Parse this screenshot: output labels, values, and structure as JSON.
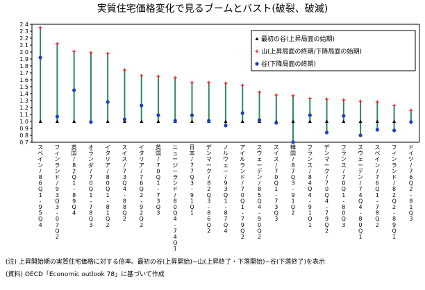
{
  "chart_data": {
    "type": "range",
    "title": "実質住宅価格変化で見るブームとバスト(破裂、破滅)",
    "ylim": [
      0.7,
      2.4
    ],
    "yticks": [
      "0.7",
      "0.8",
      "0.9",
      "1.0",
      "1.1",
      "1.2",
      "1.3",
      "1.4",
      "1.5",
      "1.6",
      "1.7",
      "1.8",
      "1.9",
      "2.0",
      "2.1",
      "2.2",
      "2.3",
      "2.4"
    ],
    "legend": [
      {
        "marker": "triangle",
        "label": "最初の谷(上昇局面の始期)"
      },
      {
        "marker": "plus",
        "label": "山(上昇局面の終期/下降局面の始期)"
      },
      {
        "marker": "circle",
        "label": "谷(下降局面の終期)"
      }
    ],
    "categories": [
      "スペイン/86Q1-95Q4",
      "フィンランド/93Q3-07Q2",
      "英国/82Q1-89Q4",
      "オランダ/70Q1-78Q3",
      "イタリア/80Q1-81Q2",
      "スイス/73Q4-88Q2",
      "イタリア/76Q2-92Q2",
      "英国/70Q1-73Q3",
      "ニュージーランド/80Q4-74Q1",
      "日本/77Q3-91Q1",
      "デンマーク/82Q3-86Q2",
      "ノルウェー/93Q1-87Q4",
      "アイルランド/70Q1-79Q2",
      "スウェーデン/85Q4-90Q2",
      "スイス/70Q1-73Q3",
      "韓国/87Q3-91Q2",
      "フランス/84Q4-91Q1",
      "デンマーク/70Q4-79Q2",
      "フランス/70Q1-80Q3",
      "スウェーデン/74Q4-80Q1",
      "スペイン/76Q1-78Q2",
      "フィンランド/82Q2-89Q1",
      "ドイツ/76Q2-81Q3"
    ],
    "series": [
      {
        "name": "最初の谷(上昇局面の始期)",
        "values": [
          1,
          1,
          1,
          1,
          1,
          1,
          1,
          1,
          1,
          1,
          1,
          1,
          1,
          1,
          1,
          1,
          1,
          1,
          1,
          1,
          1,
          1,
          1
        ]
      },
      {
        "name": "山(上昇局面の終期/下降局面の始期)",
        "values": [
          2.35,
          2.12,
          2.01,
          1.99,
          1.98,
          1.74,
          1.66,
          1.65,
          1.63,
          1.56,
          1.56,
          1.55,
          1.52,
          1.42,
          1.38,
          1.37,
          1.33,
          1.32,
          1.31,
          1.29,
          1.28,
          1.23,
          1.16
        ]
      },
      {
        "name": "谷(下降局面の終期)",
        "values": [
          1.92,
          1.07,
          1.45,
          0.99,
          1.28,
          1.03,
          1.23,
          1.09,
          1.01,
          1.09,
          1.01,
          0.94,
          1.12,
          1.02,
          0.98,
          0.7,
          1.09,
          0.84,
          1.08,
          0.8,
          0.88,
          0.87,
          0.99
        ]
      }
    ]
  },
  "footnotes": {
    "note": "(注) 上昇開始期の実質住宅価格に対する倍率。最初の谷(上昇開始)~山(上昇終了・下落開始)~谷(下落終了)を表示",
    "source": "(資料) OECD「Economic outlook 78」に基づいて作成"
  },
  "colors": {
    "range_line": "#2e8b57",
    "peak": "#e02020",
    "trough": "#1f3fbf",
    "start": "#000000",
    "axis": "#000000",
    "legend_border": "#000000"
  }
}
